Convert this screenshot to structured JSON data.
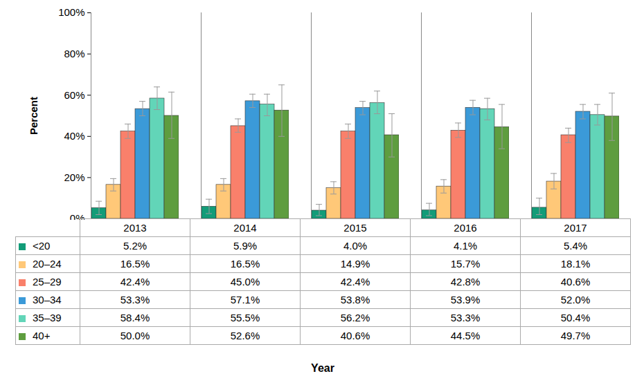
{
  "chart_data": {
    "type": "bar",
    "x_label": "Year",
    "y_label": "Percent",
    "categories": [
      "2013",
      "2014",
      "2015",
      "2016",
      "2017"
    ],
    "ylim": [
      0,
      100
    ],
    "yticks": [
      {
        "value": 0,
        "label": "0%"
      },
      {
        "value": 20,
        "label": "20%"
      },
      {
        "value": 40,
        "label": "40%"
      },
      {
        "value": 60,
        "label": "60%"
      },
      {
        "value": 80,
        "label": "80%"
      },
      {
        "value": 100,
        "label": "100%"
      }
    ],
    "grid": false,
    "series": [
      {
        "name": "<20",
        "color": "#129c78",
        "values": [
          5.2,
          5.9,
          4.0,
          4.1,
          5.4
        ],
        "value_labels": [
          "5.2%",
          "5.9%",
          "4.0%",
          "4.1%",
          "5.4%"
        ],
        "error_low": [
          2,
          2.5,
          1.5,
          1.5,
          2
        ],
        "error_high": [
          8.5,
          9.5,
          7,
          7.5,
          10
        ]
      },
      {
        "name": "20–24",
        "color": "#ffc878",
        "values": [
          16.5,
          16.5,
          14.9,
          15.7,
          18.1
        ],
        "value_labels": [
          "16.5%",
          "16.5%",
          "14.9%",
          "15.7%",
          "18.1%"
        ],
        "error_low": [
          13.5,
          13.5,
          12,
          12.5,
          14.5
        ],
        "error_high": [
          19.5,
          19.5,
          18,
          19,
          22
        ]
      },
      {
        "name": "25–29",
        "color": "#f9806b",
        "values": [
          42.4,
          45.0,
          42.4,
          42.8,
          40.6
        ],
        "value_labels": [
          "42.4%",
          "45.0%",
          "42.4%",
          "42.8%",
          "40.6%"
        ],
        "error_low": [
          39,
          42,
          39,
          39.5,
          37
        ],
        "error_high": [
          46,
          48.5,
          46,
          46.5,
          44
        ]
      },
      {
        "name": "30–34",
        "color": "#3b9ad8",
        "values": [
          53.3,
          57.1,
          53.8,
          53.9,
          52.0
        ],
        "value_labels": [
          "53.3%",
          "57.1%",
          "53.8%",
          "53.9%",
          "52.0%"
        ],
        "error_low": [
          50,
          54,
          50.5,
          50.5,
          48.5
        ],
        "error_high": [
          57,
          60.5,
          57,
          57.5,
          55.5
        ]
      },
      {
        "name": "35–39",
        "color": "#62d5b8",
        "values": [
          58.4,
          55.5,
          56.2,
          53.3,
          50.4
        ],
        "value_labels": [
          "58.4%",
          "55.5%",
          "56.2%",
          "53.3%",
          "50.4%"
        ],
        "error_low": [
          53,
          50,
          51,
          48,
          45.5
        ],
        "error_high": [
          64,
          60.5,
          62,
          58.5,
          55.5
        ]
      },
      {
        "name": "40+",
        "color": "#5e9d3f",
        "values": [
          50.0,
          52.6,
          40.6,
          44.5,
          49.7
        ],
        "value_labels": [
          "50.0%",
          "52.6%",
          "40.6%",
          "44.5%",
          "49.7%"
        ],
        "error_low": [
          39,
          40,
          30,
          34,
          38
        ],
        "error_high": [
          61.5,
          65,
          51,
          55.5,
          61
        ]
      }
    ]
  }
}
